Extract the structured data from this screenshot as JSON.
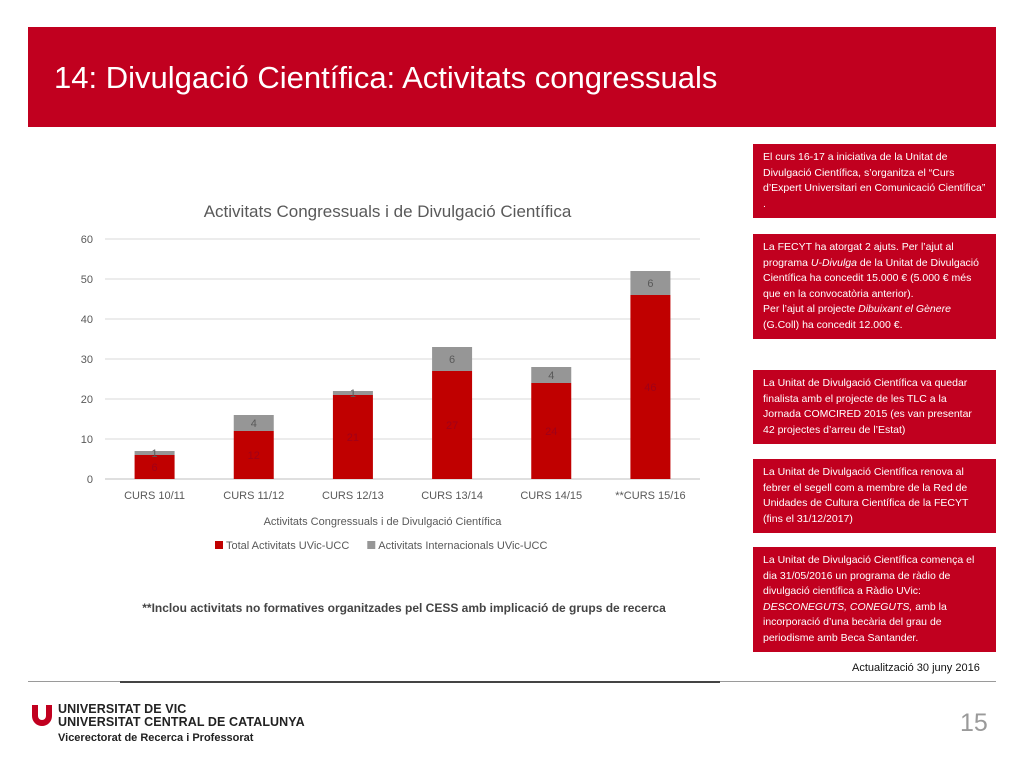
{
  "slide": {
    "title": "14: Divulgació Científica: Activitats congressuals",
    "footnote": "**Inclou activitats no formatives organitzades pel CESS amb implicació de grups de recerca",
    "update": "Actualització 30 juny 2016",
    "page_number": "15"
  },
  "footer": {
    "university_line1": "UNIVERSITAT DE VIC",
    "university_line2": "UNIVERSITAT CENTRAL DE CATALUNYA",
    "vicerectorat": "Vicerectorat de Recerca i Professorat"
  },
  "info_boxes": [
    {
      "parts": [
        {
          "text": "El curs 16-17 a iniciativa de la Unitat de Divulgació Científica, s’organitza el “Curs d’Expert Universitari en Comunicació Científica” ."
        }
      ]
    },
    {
      "parts": [
        {
          "text": "La FECYT ha atorgat 2 ajuts. Per l’ajut al programa "
        },
        {
          "text": "U-Divulga",
          "italic": true
        },
        {
          "text": " de la Unitat de Divulgació Científica ha concedit 15.000 € (5.000 € més que en la convocatòria anterior)."
        },
        {
          "br": true
        },
        {
          "text": "Per l’ajut al projecte "
        },
        {
          "text": "Dibuixant el Gènere",
          "italic": true
        },
        {
          "text": " (G.Coll) ha concedit 12.000 €."
        }
      ]
    },
    {
      "parts": [
        {
          "text": "La Unitat de Divulgació Científica va quedar finalista amb el projecte de les TLC a la Jornada COMCIRED 2015 (es van presentar 42 projectes d’arreu de l’Estat)"
        }
      ]
    },
    {
      "parts": [
        {
          "text": "La Unitat de Divulgació Científica renova al febrer el segell com a membre de la Red de Unidades de Cultura Científica de la FECYT (fins el 31/12/2017)"
        }
      ]
    },
    {
      "parts": [
        {
          "text": "La Unitat de Divulgació Científica comença el dia 31/05/2016 un programa de ràdio de divulgació científica a Ràdio UVic: "
        },
        {
          "text": "DESCONEGUTS, CONEGUTS,",
          "italic": true
        },
        {
          "text": " amb la incorporació d’una becària del grau de periodisme   amb Beca Santander."
        }
      ]
    }
  ],
  "colors": {
    "brand_red": "#c1001f",
    "bar_total": "#c00000",
    "bar_internacional": "#969696",
    "grid": "#d9d9d9"
  },
  "chart_data": {
    "type": "bar",
    "stacked": true,
    "title": "Activitats Congressuals i de Divulgació Científica",
    "xlabel": "Activitats Congressuals i de Divulgació Científica",
    "ylabel": "",
    "ylim": [
      0,
      60
    ],
    "yticks": [
      0,
      10,
      20,
      30,
      40,
      50,
      60
    ],
    "grid": true,
    "legend_position": "bottom",
    "categories": [
      "CURS 10/11",
      "CURS 11/12",
      "CURS 12/13",
      "CURS 13/14",
      "CURS 14/15",
      "**CURS 15/16"
    ],
    "series": [
      {
        "name": "Total Activitats UVic-UCC",
        "values": [
          6,
          12,
          21,
          27,
          24,
          46
        ],
        "color": "#c00000"
      },
      {
        "name": "Activitats Internacionals UVic-UCC",
        "values": [
          1,
          4,
          1,
          6,
          4,
          6
        ],
        "color": "#969696"
      }
    ]
  }
}
